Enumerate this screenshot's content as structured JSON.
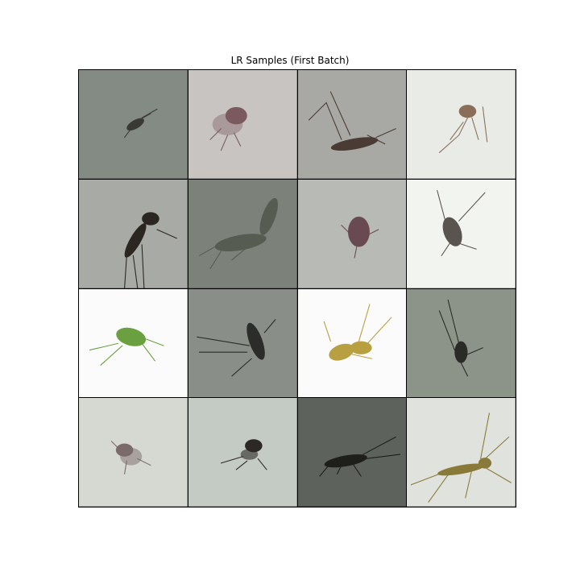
{
  "figure": {
    "title": "LR Samples (First Batch)"
  },
  "tiles": [
    {
      "id": "r1c1",
      "bg": "#848a84",
      "insect": "#3a3a34"
    },
    {
      "id": "r1c2",
      "bg": "#c8c4c1",
      "insect": "#7b5a5e"
    },
    {
      "id": "r1c3",
      "bg": "#a8a8a4",
      "insect": "#4a3c34"
    },
    {
      "id": "r1c4",
      "bg": "#e8ebe6",
      "insect": "#8a6e5a"
    },
    {
      "id": "r2c1",
      "bg": "#a8aaa6",
      "insect": "#2c2620"
    },
    {
      "id": "r2c2",
      "bg": "#7c827a",
      "insect": "#565c52"
    },
    {
      "id": "r2c3",
      "bg": "#b8bab6",
      "insect": "#6a4a52"
    },
    {
      "id": "r2c4",
      "bg": "#f2f4f0",
      "insect": "#5a5450"
    },
    {
      "id": "r3c1",
      "bg": "#fbfbfb",
      "insect": "#6aa040"
    },
    {
      "id": "r3c2",
      "bg": "#8a8e88",
      "insect": "#2c2c2a"
    },
    {
      "id": "r3c3",
      "bg": "#fbfbfb",
      "insect": "#b8a040"
    },
    {
      "id": "r3c4",
      "bg": "#8c948a",
      "insect": "#2a2a26"
    },
    {
      "id": "r4c1",
      "bg": "#d6d8d2",
      "insect": "#7a6a6a"
    },
    {
      "id": "r4c2",
      "bg": "#c4cac4",
      "insect": "#2c2826"
    },
    {
      "id": "r4c3",
      "bg": "#5e625c",
      "insect": "#1e1e1a"
    },
    {
      "id": "r4c4",
      "bg": "#e0e2de",
      "insect": "#8a7a3a"
    }
  ]
}
